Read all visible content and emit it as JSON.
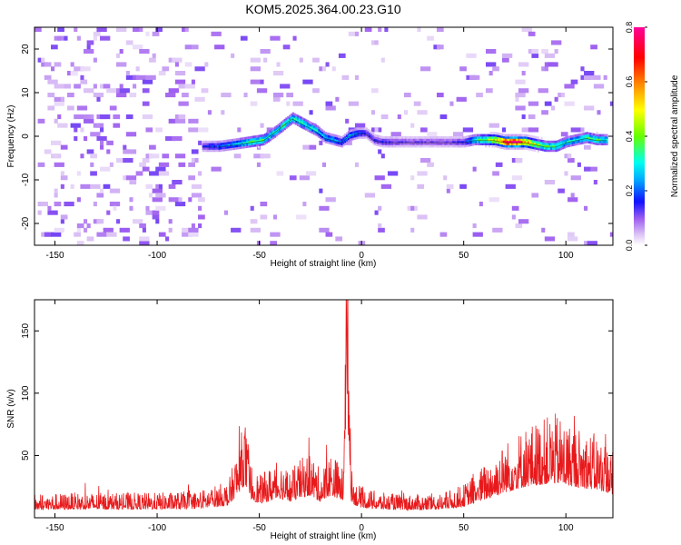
{
  "title": "KOM5.2025.364.00.23.G10",
  "chart_data": [
    {
      "type": "heatmap",
      "name": "spectrogram",
      "xlabel": "Height of straight line (km)",
      "ylabel": "Frequency (Hz)",
      "xlim": [
        -160,
        123
      ],
      "ylim": [
        -25,
        25
      ],
      "xticks": [
        -150,
        -100,
        -50,
        0,
        50,
        100
      ],
      "xtick_labels": [
        "-150",
        "-100",
        "-50",
        "0",
        "50",
        "100"
      ],
      "yticks": [
        -20,
        -10,
        0,
        10,
        20
      ],
      "ytick_labels": [
        "-20",
        "-10",
        "0",
        "10",
        "20"
      ],
      "ridge": {
        "x": [
          -78,
          -70,
          -62,
          -55,
          -48,
          -42,
          -38,
          -34,
          -30,
          -26,
          -22,
          -18,
          -14,
          -10,
          -6,
          -2,
          2,
          6,
          10,
          20,
          30,
          40,
          50,
          55,
          60,
          65,
          70,
          75,
          80,
          85,
          90,
          95,
          100,
          105,
          110,
          115,
          120
        ],
        "y": [
          -2.5,
          -2.5,
          -2,
          -1.5,
          -1,
          1,
          2.5,
          4,
          3,
          2,
          1,
          -0.5,
          -1,
          -1.5,
          0,
          0.5,
          0.5,
          -1,
          -1.5,
          -1.5,
          -1.5,
          -1.5,
          -1.5,
          -1,
          -1,
          -1,
          -1.5,
          -1.5,
          -1.5,
          -2,
          -2.5,
          -2.5,
          -1.5,
          -1,
          -0.5,
          -1,
          -1
        ],
        "amplitude": [
          0.15,
          0.2,
          0.25,
          0.35,
          0.35,
          0.3,
          0.35,
          0.3,
          0.35,
          0.3,
          0.3,
          0.25,
          0.25,
          0.2,
          0.25,
          0.2,
          0.15,
          0.15,
          0.15,
          0.12,
          0.12,
          0.12,
          0.15,
          0.3,
          0.4,
          0.5,
          0.75,
          0.8,
          0.6,
          0.45,
          0.35,
          0.35,
          0.3,
          0.3,
          0.35,
          0.35,
          0.3
        ]
      },
      "colorbar": {
        "label": "Normalized spectral amplitude",
        "range": [
          0.0,
          0.8
        ],
        "ticks": [
          0.0,
          0.2,
          0.4,
          0.6,
          0.8
        ],
        "tick_labels": [
          "0.0",
          "0.2",
          "0.4",
          "0.6",
          "0.8"
        ]
      }
    },
    {
      "type": "line",
      "name": "snr",
      "xlabel": "Height of straight line (km)",
      "ylabel": "SNR (v/v)",
      "xlim": [
        -160,
        123
      ],
      "ylim": [
        0,
        175
      ],
      "xticks": [
        -150,
        -100,
        -50,
        0,
        50,
        100
      ],
      "xtick_labels": [
        "-150",
        "-100",
        "-50",
        "0",
        "50",
        "100"
      ],
      "yticks": [
        50,
        100,
        150
      ],
      "ytick_labels": [
        "50",
        "100",
        "150"
      ],
      "color": "#e8191b",
      "envelope": {
        "x": [
          -160,
          -140,
          -120,
          -100,
          -80,
          -65,
          -60,
          -57,
          -55,
          -50,
          -45,
          -40,
          -35,
          -30,
          -25,
          -20,
          -15,
          -12,
          -9,
          -8,
          -7,
          -6,
          -5,
          -3,
          0,
          10,
          20,
          30,
          40,
          50,
          60,
          70,
          80,
          90,
          95,
          100,
          105,
          110,
          115,
          120,
          123
        ],
        "y": [
          14,
          15,
          15,
          15,
          16,
          22,
          45,
          60,
          35,
          25,
          30,
          35,
          28,
          35,
          40,
          28,
          40,
          35,
          30,
          150,
          170,
          120,
          30,
          22,
          18,
          15,
          14,
          14,
          15,
          20,
          32,
          45,
          55,
          60,
          62,
          58,
          55,
          52,
          50,
          45,
          40
        ]
      }
    }
  ]
}
